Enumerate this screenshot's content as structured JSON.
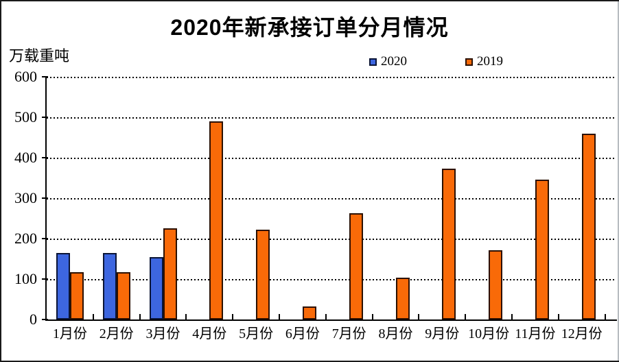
{
  "chart_data": {
    "type": "bar",
    "title": "2020年新承接订单分月情况",
    "ylabel": "万载重吨",
    "categories": [
      "1月份",
      "2月份",
      "3月份",
      "4月份",
      "5月份",
      "6月份",
      "7月份",
      "8月份",
      "9月份",
      "10月份",
      "11月份",
      "12月份"
    ],
    "series": [
      {
        "name": "2020",
        "color": "#3D66E0",
        "border_color": "#0A1436",
        "values": [
          165,
          165,
          155,
          null,
          null,
          null,
          null,
          null,
          null,
          null,
          null,
          null
        ]
      },
      {
        "name": "2019",
        "color": "#F96A08",
        "border_color": "#2B1000",
        "values": [
          117,
          117,
          225,
          490,
          222,
          32,
          262,
          103,
          373,
          172,
          345,
          460
        ]
      }
    ],
    "ylim": [
      0,
      600
    ],
    "ytick_interval": 100,
    "yticks": [
      0,
      100,
      200,
      300,
      400,
      500,
      600
    ],
    "grid": "horizontal-dashed",
    "legend_position": "top-center",
    "axis_color": "#000000",
    "background": "#FFFFFF"
  }
}
